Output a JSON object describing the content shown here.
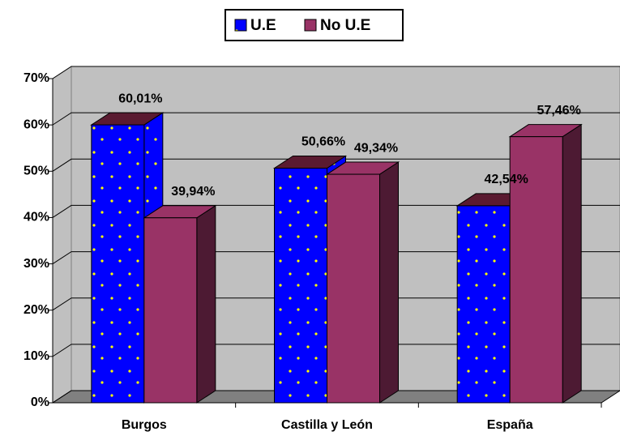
{
  "chart_data": {
    "type": "bar3d",
    "categories": [
      "Burgos",
      "Castilla y León",
      "España"
    ],
    "series": [
      {
        "name": "U.E",
        "color": "#0000ff",
        "values": [
          60.01,
          50.66,
          42.54
        ],
        "value_labels": [
          "60,01%",
          "50,66%",
          "42,54%"
        ]
      },
      {
        "name": "No U.E",
        "color": "#993366",
        "values": [
          39.94,
          49.34,
          57.46
        ],
        "value_labels": [
          "39,94%",
          "49,34%",
          "57,46%"
        ]
      }
    ],
    "ylim": [
      0,
      70
    ],
    "yticks": [
      {
        "value": 0,
        "label": "0%"
      },
      {
        "value": 10,
        "label": "10%"
      },
      {
        "value": 20,
        "label": "20%"
      },
      {
        "value": 30,
        "label": "30%"
      },
      {
        "value": 40,
        "label": "40%"
      },
      {
        "value": 50,
        "label": "50%"
      },
      {
        "value": 60,
        "label": "60%"
      },
      {
        "value": 70,
        "label": "70%"
      }
    ],
    "grid": true,
    "legend": "top"
  }
}
